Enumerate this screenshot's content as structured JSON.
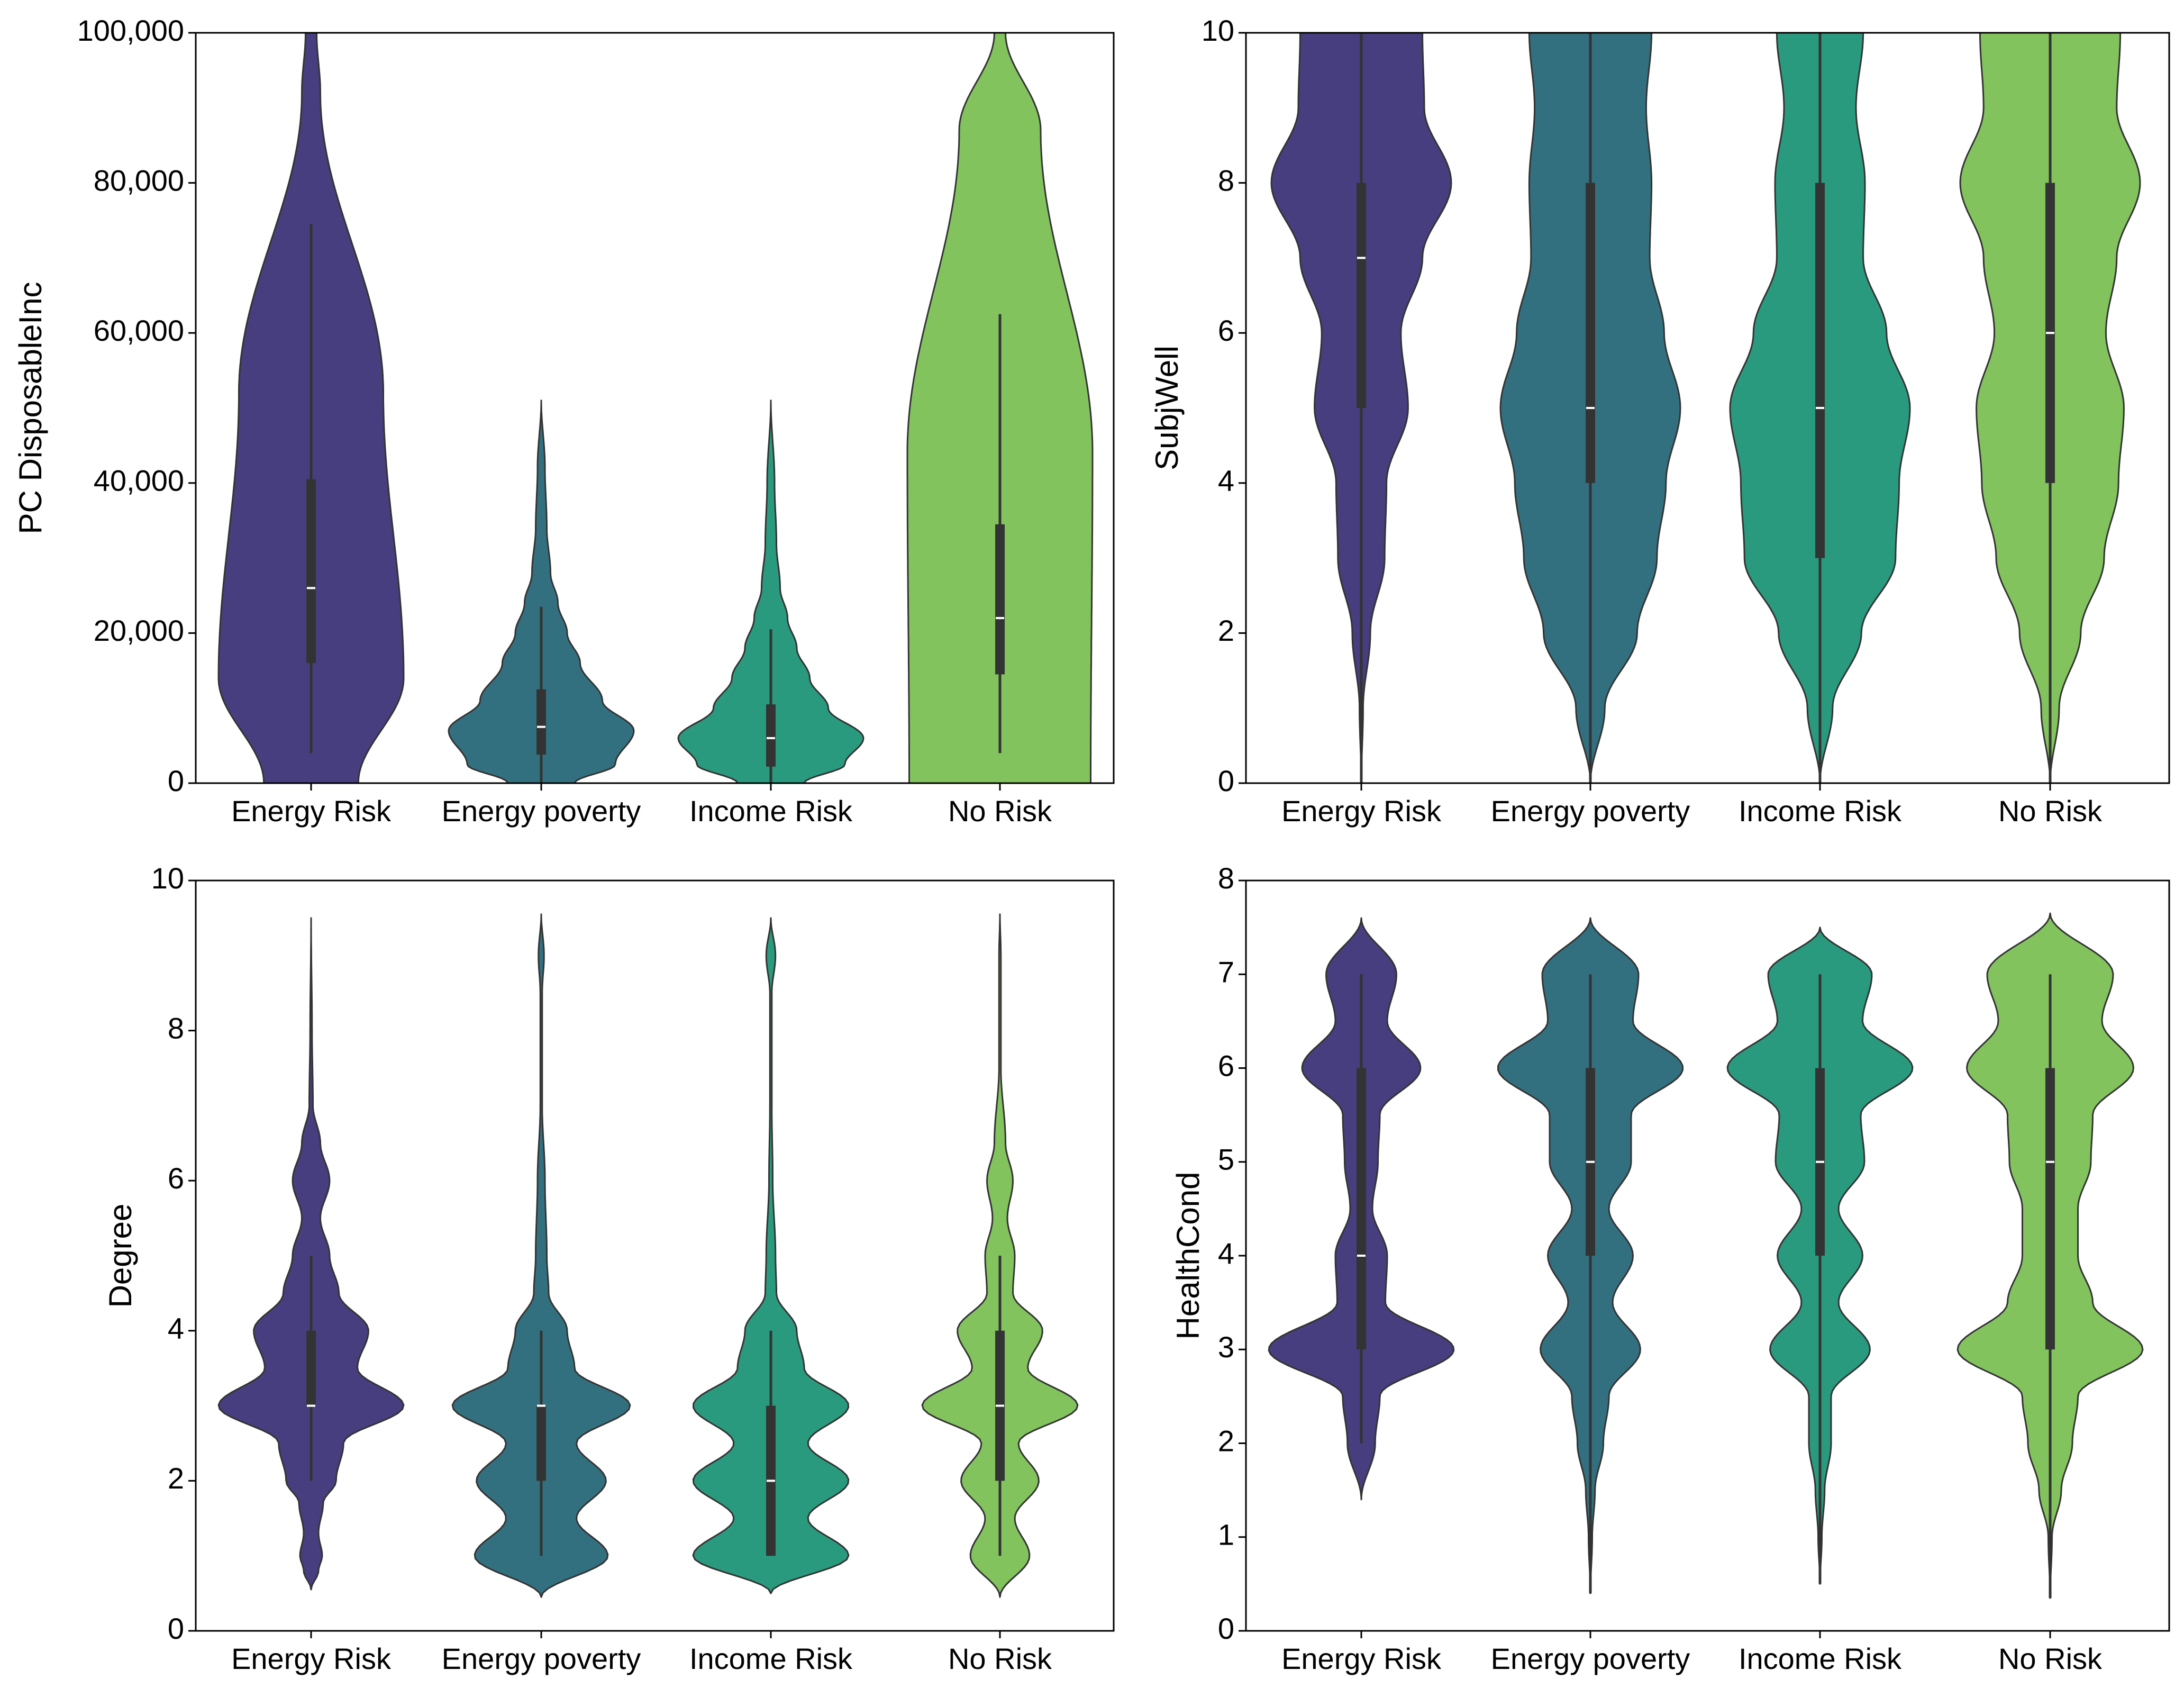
{
  "palette": {
    "Energy Risk": "#463e7e",
    "Energy poverty": "#33707f",
    "Income Risk": "#2a9a7e",
    "No Risk": "#82c35e",
    "box": "#333333",
    "median": "#ffffff"
  },
  "chart_data": [
    {
      "type": "violin",
      "title": "",
      "xlabel": "",
      "ylabel": "PC DisposableInc",
      "categories": [
        "Energy Risk",
        "Energy poverty",
        "Income Risk",
        "No Risk"
      ],
      "ylim": [
        0,
        100000
      ],
      "yticks": [
        0,
        20000,
        40000,
        60000,
        80000,
        100000
      ],
      "ytick_labels": [
        "0",
        "20,000",
        "40,000",
        "60,000",
        "80,000",
        "100,000"
      ],
      "grid": false,
      "series": [
        {
          "category": "Energy Risk",
          "box": {
            "q1": 16000,
            "median": 26000,
            "q3": 40500,
            "whisker_low": 4000,
            "whisker_high": 74500
          },
          "density": [
            [
              0,
              0.51
            ],
            [
              14000,
              1.0
            ],
            [
              52000,
              0.78
            ],
            [
              92000,
              0.1
            ],
            [
              100000,
              0.06
            ]
          ]
        },
        {
          "category": "Energy poverty",
          "box": {
            "q1": 3800,
            "median": 7500,
            "q3": 12500,
            "whisker_low": 0,
            "whisker_high": 23500
          },
          "density": [
            [
              0,
              0.36
            ],
            [
              2500,
              0.8
            ],
            [
              7000,
              1.0
            ],
            [
              11000,
              0.66
            ],
            [
              16000,
              0.42
            ],
            [
              20000,
              0.28
            ],
            [
              24000,
              0.18
            ],
            [
              28000,
              0.1
            ],
            [
              34000,
              0.06
            ],
            [
              42000,
              0.04
            ],
            [
              51000,
              0.0
            ]
          ]
        },
        {
          "category": "Income Risk",
          "box": {
            "q1": 2200,
            "median": 6000,
            "q3": 10500,
            "whisker_low": 0,
            "whisker_high": 20500
          },
          "density": [
            [
              0,
              0.36
            ],
            [
              2500,
              0.8
            ],
            [
              6000,
              1.0
            ],
            [
              10000,
              0.62
            ],
            [
              14000,
              0.42
            ],
            [
              18000,
              0.28
            ],
            [
              22000,
              0.18
            ],
            [
              26000,
              0.1
            ],
            [
              32000,
              0.06
            ],
            [
              40000,
              0.04
            ],
            [
              51000,
              0.0
            ]
          ]
        },
        {
          "category": "No Risk",
          "box": {
            "q1": 14500,
            "median": 22000,
            "q3": 34500,
            "whisker_low": 4000,
            "whisker_high": 62500
          },
          "density": [
            [
              0,
              0.98
            ],
            [
              44000,
              1.0
            ],
            [
              87000,
              0.44
            ],
            [
              100000,
              0.06
            ]
          ]
        }
      ]
    },
    {
      "type": "violin",
      "title": "",
      "xlabel": "",
      "ylabel": "SubjWell",
      "categories": [
        "Energy Risk",
        "Energy poverty",
        "Income Risk",
        "No Risk"
      ],
      "ylim": [
        0,
        10
      ],
      "yticks": [
        0,
        2,
        4,
        6,
        8,
        10
      ],
      "ytick_labels": [
        "0",
        "2",
        "4",
        "6",
        "8",
        "10"
      ],
      "grid": false,
      "series": [
        {
          "category": "Energy Risk",
          "box": {
            "q1": 5,
            "median": 7,
            "q3": 8,
            "whisker_low": 0,
            "whisker_high": 10
          },
          "density": [
            [
              0,
              0.0
            ],
            [
              1,
              0.02
            ],
            [
              2,
              0.1
            ],
            [
              3,
              0.26
            ],
            [
              4,
              0.28
            ],
            [
              5,
              0.52
            ],
            [
              6,
              0.44
            ],
            [
              7,
              0.68
            ],
            [
              8,
              1.0
            ],
            [
              9,
              0.7
            ],
            [
              10,
              0.68
            ]
          ]
        },
        {
          "category": "Energy poverty",
          "box": {
            "q1": 4,
            "median": 5,
            "q3": 8,
            "whisker_low": 0,
            "whisker_high": 10
          },
          "density": [
            [
              0,
              0.0
            ],
            [
              1,
              0.16
            ],
            [
              2,
              0.52
            ],
            [
              3,
              0.74
            ],
            [
              4,
              0.84
            ],
            [
              5,
              1.0
            ],
            [
              6,
              0.82
            ],
            [
              7,
              0.66
            ],
            [
              8,
              0.68
            ],
            [
              9,
              0.62
            ],
            [
              10,
              0.68
            ]
          ]
        },
        {
          "category": "Income Risk",
          "box": {
            "q1": 3,
            "median": 5,
            "q3": 8,
            "whisker_low": 0,
            "whisker_high": 10
          },
          "density": [
            [
              0,
              0.0
            ],
            [
              1,
              0.14
            ],
            [
              2,
              0.46
            ],
            [
              3,
              0.84
            ],
            [
              4,
              0.88
            ],
            [
              5,
              1.0
            ],
            [
              6,
              0.74
            ],
            [
              7,
              0.48
            ],
            [
              8,
              0.5
            ],
            [
              9,
              0.4
            ],
            [
              10,
              0.48
            ]
          ]
        },
        {
          "category": "No Risk",
          "box": {
            "q1": 4,
            "median": 6,
            "q3": 8,
            "whisker_low": 0,
            "whisker_high": 10
          },
          "density": [
            [
              0,
              0.0
            ],
            [
              1,
              0.1
            ],
            [
              2,
              0.34
            ],
            [
              3,
              0.6
            ],
            [
              4,
              0.76
            ],
            [
              5,
              0.82
            ],
            [
              6,
              0.62
            ],
            [
              7,
              0.74
            ],
            [
              8,
              1.0
            ],
            [
              9,
              0.74
            ],
            [
              10,
              0.78
            ]
          ]
        }
      ]
    },
    {
      "type": "violin",
      "title": "",
      "xlabel": "",
      "ylabel": "Degree",
      "categories": [
        "Energy Risk",
        "Energy poverty",
        "Income Risk",
        "No Risk"
      ],
      "ylim": [
        0,
        10
      ],
      "yticks": [
        0,
        2,
        4,
        6,
        8,
        10
      ],
      "ytick_labels": [
        "0",
        "2",
        "4",
        "6",
        "8",
        "10"
      ],
      "grid": false,
      "series": [
        {
          "category": "Energy Risk",
          "box": {
            "q1": 3,
            "median": 3,
            "q3": 4,
            "whisker_low": 2,
            "whisker_high": 5
          },
          "density": [
            [
              0.55,
              0.0
            ],
            [
              0.8,
              0.08
            ],
            [
              1.0,
              0.12
            ],
            [
              1.3,
              0.08
            ],
            [
              1.7,
              0.13
            ],
            [
              2.0,
              0.27
            ],
            [
              2.5,
              0.35
            ],
            [
              3.0,
              1.0
            ],
            [
              3.5,
              0.5
            ],
            [
              4.0,
              0.62
            ],
            [
              4.5,
              0.3
            ],
            [
              5.0,
              0.2
            ],
            [
              5.5,
              0.1
            ],
            [
              6.0,
              0.2
            ],
            [
              6.5,
              0.1
            ],
            [
              7.0,
              0.02
            ],
            [
              8.0,
              0.01
            ],
            [
              9.5,
              0.0
            ]
          ]
        },
        {
          "category": "Energy poverty",
          "box": {
            "q1": 2,
            "median": 3,
            "q3": 3,
            "whisker_low": 1,
            "whisker_high": 4
          },
          "density": [
            [
              0.45,
              0.0
            ],
            [
              1.0,
              0.72
            ],
            [
              1.5,
              0.38
            ],
            [
              2.0,
              0.7
            ],
            [
              2.5,
              0.38
            ],
            [
              3.0,
              0.96
            ],
            [
              3.5,
              0.36
            ],
            [
              4.0,
              0.28
            ],
            [
              4.5,
              0.08
            ],
            [
              5.0,
              0.06
            ],
            [
              6.0,
              0.04
            ],
            [
              7.0,
              0.01
            ],
            [
              8.5,
              0.01
            ],
            [
              9.0,
              0.03
            ],
            [
              9.55,
              0.0
            ]
          ]
        },
        {
          "category": "Income Risk",
          "box": {
            "q1": 1,
            "median": 2,
            "q3": 3,
            "whisker_low": 1,
            "whisker_high": 4
          },
          "density": [
            [
              0.5,
              0.0
            ],
            [
              1.0,
              0.84
            ],
            [
              1.5,
              0.4
            ],
            [
              2.0,
              0.84
            ],
            [
              2.5,
              0.4
            ],
            [
              3.0,
              0.84
            ],
            [
              3.5,
              0.36
            ],
            [
              4.0,
              0.28
            ],
            [
              4.5,
              0.06
            ],
            [
              5.0,
              0.05
            ],
            [
              6.0,
              0.02
            ],
            [
              7.0,
              0.01
            ],
            [
              8.5,
              0.01
            ],
            [
              9.0,
              0.05
            ],
            [
              9.5,
              0.0
            ]
          ]
        },
        {
          "category": "No Risk",
          "box": {
            "q1": 2,
            "median": 3,
            "q3": 4,
            "whisker_low": 1,
            "whisker_high": 5
          },
          "density": [
            [
              0.45,
              0.0
            ],
            [
              1.0,
              0.32
            ],
            [
              1.5,
              0.16
            ],
            [
              2.0,
              0.42
            ],
            [
              2.5,
              0.2
            ],
            [
              3.0,
              0.84
            ],
            [
              3.5,
              0.3
            ],
            [
              4.0,
              0.46
            ],
            [
              4.5,
              0.14
            ],
            [
              5.0,
              0.16
            ],
            [
              5.5,
              0.08
            ],
            [
              6.0,
              0.14
            ],
            [
              6.5,
              0.06
            ],
            [
              7.5,
              0.01
            ],
            [
              9.0,
              0.01
            ],
            [
              9.55,
              0.0
            ]
          ]
        }
      ]
    },
    {
      "type": "violin",
      "title": "",
      "xlabel": "",
      "ylabel": "HealthCond",
      "categories": [
        "Energy Risk",
        "Energy poverty",
        "Income Risk",
        "No Risk"
      ],
      "ylim": [
        0,
        8
      ],
      "yticks": [
        0,
        1,
        2,
        3,
        4,
        5,
        6,
        7,
        8
      ],
      "ytick_labels": [
        "0",
        "1",
        "2",
        "3",
        "4",
        "5",
        "6",
        "7",
        "8"
      ],
      "grid": false,
      "series": [
        {
          "category": "Energy Risk",
          "box": {
            "q1": 3,
            "median": 4,
            "q3": 6,
            "whisker_low": 2,
            "whisker_high": 7
          },
          "density": [
            [
              1.4,
              0.0
            ],
            [
              2.0,
              0.15
            ],
            [
              2.5,
              0.2
            ],
            [
              3.0,
              1.0
            ],
            [
              3.5,
              0.26
            ],
            [
              4.0,
              0.28
            ],
            [
              4.5,
              0.12
            ],
            [
              5.0,
              0.18
            ],
            [
              5.5,
              0.2
            ],
            [
              6.0,
              0.64
            ],
            [
              6.5,
              0.28
            ],
            [
              7.0,
              0.38
            ],
            [
              7.6,
              0.0
            ]
          ]
        },
        {
          "category": "Energy poverty",
          "box": {
            "q1": 4,
            "median": 5,
            "q3": 6,
            "whisker_low": 0.4,
            "whisker_high": 7
          },
          "density": [
            [
              0.4,
              0.0
            ],
            [
              1.0,
              0.02
            ],
            [
              1.5,
              0.05
            ],
            [
              2.0,
              0.14
            ],
            [
              2.5,
              0.2
            ],
            [
              3.0,
              0.54
            ],
            [
              3.5,
              0.24
            ],
            [
              4.0,
              0.46
            ],
            [
              4.5,
              0.2
            ],
            [
              5.0,
              0.44
            ],
            [
              5.5,
              0.44
            ],
            [
              6.0,
              1.0
            ],
            [
              6.5,
              0.46
            ],
            [
              7.0,
              0.52
            ],
            [
              7.6,
              0.0
            ]
          ]
        },
        {
          "category": "Income Risk",
          "box": {
            "q1": 4,
            "median": 5,
            "q3": 6,
            "whisker_low": 0.5,
            "whisker_high": 7
          },
          "density": [
            [
              0.5,
              0.0
            ],
            [
              1.0,
              0.02
            ],
            [
              1.5,
              0.05
            ],
            [
              2.0,
              0.12
            ],
            [
              2.5,
              0.12
            ],
            [
              3.0,
              0.54
            ],
            [
              3.5,
              0.2
            ],
            [
              4.0,
              0.46
            ],
            [
              4.5,
              0.2
            ],
            [
              5.0,
              0.48
            ],
            [
              5.5,
              0.44
            ],
            [
              6.0,
              1.0
            ],
            [
              6.5,
              0.46
            ],
            [
              7.0,
              0.56
            ],
            [
              7.5,
              0.0
            ]
          ]
        },
        {
          "category": "No Risk",
          "box": {
            "q1": 3,
            "median": 5,
            "q3": 6,
            "whisker_low": 0.35,
            "whisker_high": 7
          },
          "density": [
            [
              0.35,
              0.0
            ],
            [
              1.0,
              0.02
            ],
            [
              1.5,
              0.12
            ],
            [
              2.0,
              0.24
            ],
            [
              2.5,
              0.3
            ],
            [
              3.0,
              1.0
            ],
            [
              3.5,
              0.46
            ],
            [
              4.0,
              0.3
            ],
            [
              4.5,
              0.3
            ],
            [
              5.0,
              0.44
            ],
            [
              5.5,
              0.46
            ],
            [
              6.0,
              0.9
            ],
            [
              6.5,
              0.56
            ],
            [
              7.0,
              0.68
            ],
            [
              7.65,
              0.0
            ]
          ]
        }
      ]
    }
  ]
}
